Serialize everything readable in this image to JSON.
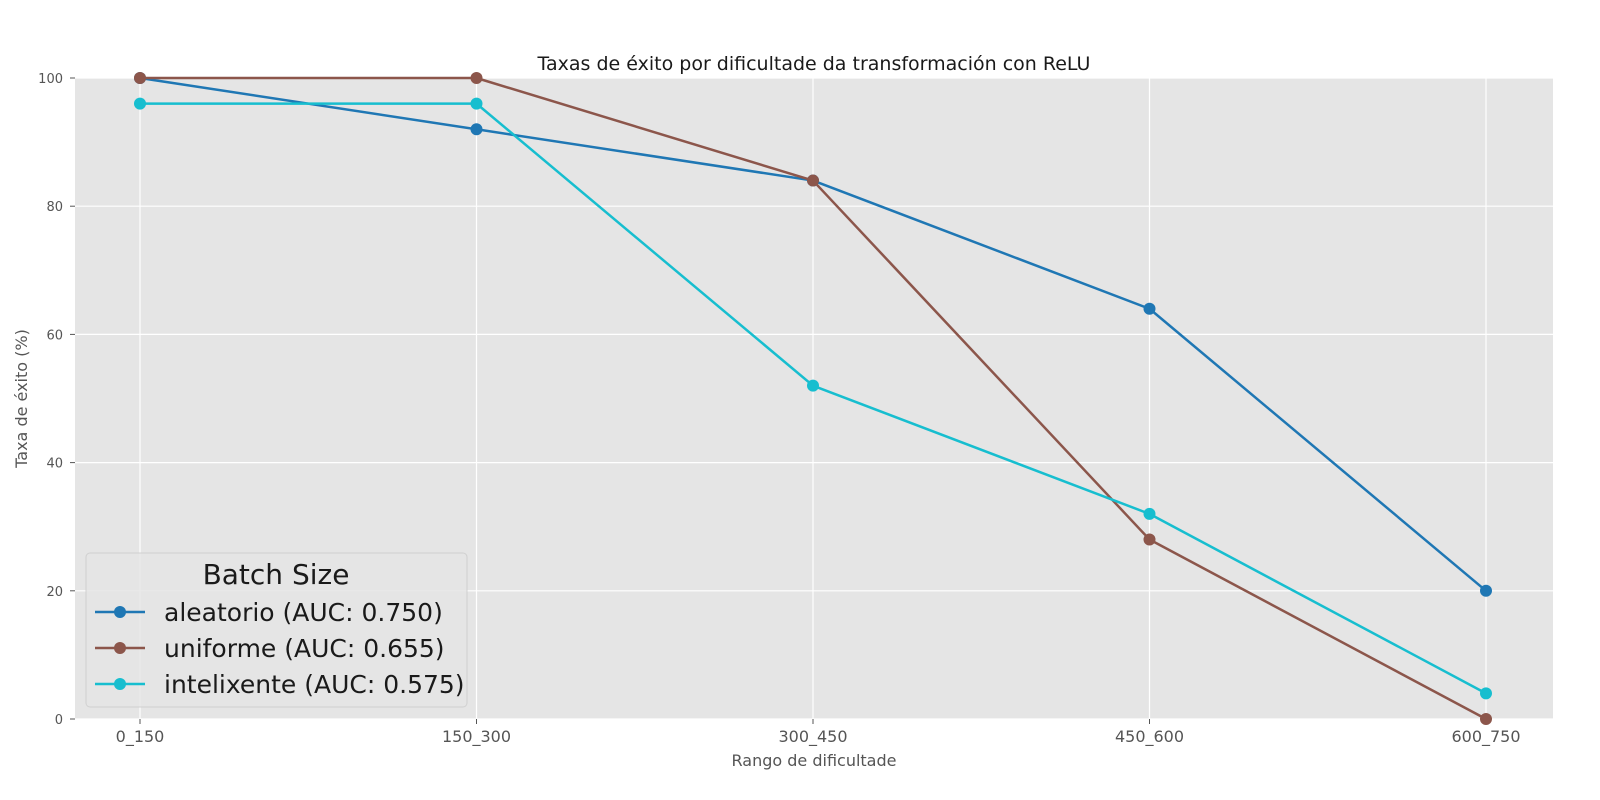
{
  "chart_data": {
    "type": "line",
    "title": "Taxas de éxito por dificultade da transformación con ReLU",
    "xlabel": "Rango de dificultade",
    "ylabel": "Taxa de éxito (%)",
    "categories": [
      "0_150",
      "150_300",
      "300_450",
      "450_600",
      "600_750"
    ],
    "ylim": [
      0,
      100
    ],
    "yticks": [
      0,
      20,
      40,
      60,
      80,
      100
    ],
    "grid": true,
    "background": "#e5e5e5",
    "legend": {
      "title": "Batch Size",
      "placement": "lower-left"
    },
    "series": [
      {
        "name": "aleatorio (AUC: 0.750)",
        "color": "#1f77b4",
        "values": [
          100,
          92,
          84,
          64,
          20
        ]
      },
      {
        "name": "uniforme (AUC: 0.655)",
        "color": "#8c564b",
        "values": [
          100,
          100,
          84,
          28,
          0
        ]
      },
      {
        "name": "intelixente (AUC: 0.575)",
        "color": "#17becf",
        "values": [
          96,
          96,
          52,
          32,
          4
        ]
      }
    ]
  }
}
